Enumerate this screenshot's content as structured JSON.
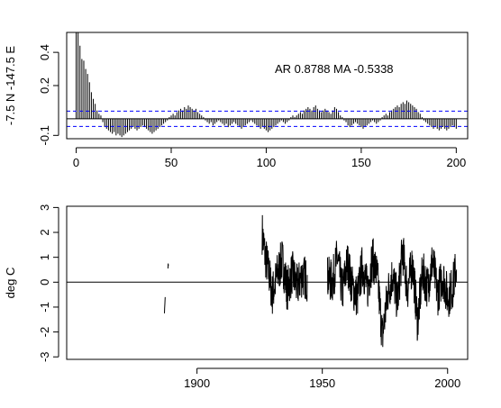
{
  "chart_data": [
    {
      "type": "bar",
      "subtype": "acf-spike",
      "title": "",
      "ylabel": "-7.5 N -147.5 E",
      "xlabel": "",
      "xlim": [
        -5,
        206
      ],
      "ylim": [
        -0.12,
        0.52
      ],
      "xticks": [
        0,
        50,
        100,
        150,
        200
      ],
      "yticks": [
        -0.1,
        0.2,
        0.4
      ],
      "annotation": "AR 0.8788  MA -0.5338",
      "confidence_band": 0.046,
      "zero_line": true,
      "colors": {
        "spikes": "#000000",
        "confidence": "#0000ff",
        "frame": "#000000"
      },
      "lags": [
        0,
        1,
        2,
        3,
        4,
        5,
        6,
        7,
        8,
        9,
        10,
        11,
        12,
        13,
        14,
        15,
        16,
        17,
        18,
        19,
        20,
        21,
        22,
        23,
        24,
        25,
        26,
        27,
        28,
        29,
        30,
        31,
        32,
        33,
        34,
        35,
        36,
        37,
        38,
        39,
        40,
        41,
        42,
        43,
        44,
        45,
        46,
        47,
        48,
        49,
        50,
        51,
        52,
        53,
        54,
        55,
        56,
        57,
        58,
        59,
        60,
        61,
        62,
        63,
        64,
        65,
        66,
        67,
        68,
        69,
        70,
        71,
        72,
        73,
        74,
        75,
        76,
        77,
        78,
        79,
        80,
        81,
        82,
        83,
        84,
        85,
        86,
        87,
        88,
        89,
        90,
        91,
        92,
        93,
        94,
        95,
        96,
        97,
        98,
        99,
        100,
        101,
        102,
        103,
        104,
        105,
        106,
        107,
        108,
        109,
        110,
        111,
        112,
        113,
        114,
        115,
        116,
        117,
        118,
        119,
        120,
        121,
        122,
        123,
        124,
        125,
        126,
        127,
        128,
        129,
        130,
        131,
        132,
        133,
        134,
        135,
        136,
        137,
        138,
        139,
        140,
        141,
        142,
        143,
        144,
        145,
        146,
        147,
        148,
        149,
        150,
        151,
        152,
        153,
        154,
        155,
        156,
        157,
        158,
        159,
        160,
        161,
        162,
        163,
        164,
        165,
        166,
        167,
        168,
        169,
        170,
        171,
        172,
        173,
        174,
        175,
        176,
        177,
        178,
        179,
        180,
        181,
        182,
        183,
        184,
        185,
        186,
        187,
        188,
        189,
        190,
        191,
        192,
        193,
        194,
        195,
        196,
        197,
        198,
        199,
        200
      ],
      "acf": [
        0.55,
        0.55,
        0.44,
        0.36,
        0.35,
        0.3,
        0.27,
        0.22,
        0.16,
        0.12,
        0.09,
        0.05,
        0.03,
        0.02,
        -0.02,
        -0.05,
        -0.06,
        -0.07,
        -0.08,
        -0.09,
        -0.08,
        -0.1,
        -0.09,
        -0.1,
        -0.11,
        -0.1,
        -0.09,
        -0.08,
        -0.07,
        -0.06,
        -0.05,
        -0.06,
        -0.07,
        -0.06,
        -0.05,
        -0.04,
        -0.05,
        -0.06,
        -0.07,
        -0.08,
        -0.09,
        -0.08,
        -0.07,
        -0.06,
        -0.05,
        -0.04,
        -0.03,
        -0.02,
        -0.01,
        0.01,
        0.02,
        0.03,
        0.02,
        0.04,
        0.05,
        0.06,
        0.05,
        0.07,
        0.06,
        0.08,
        0.07,
        0.06,
        0.05,
        0.06,
        0.04,
        0.03,
        0.02,
        0.01,
        -0.01,
        -0.02,
        -0.03,
        -0.02,
        -0.04,
        -0.03,
        -0.02,
        -0.01,
        -0.02,
        -0.03,
        -0.04,
        -0.03,
        -0.05,
        -0.04,
        -0.03,
        -0.02,
        -0.03,
        -0.04,
        -0.05,
        -0.06,
        -0.05,
        -0.04,
        -0.03,
        -0.02,
        -0.01,
        -0.02,
        -0.03,
        -0.04,
        -0.05,
        -0.06,
        -0.05,
        -0.06,
        -0.07,
        -0.08,
        -0.07,
        -0.06,
        -0.05,
        -0.04,
        -0.03,
        -0.02,
        -0.01,
        -0.02,
        -0.03,
        -0.02,
        -0.01,
        0.01,
        0.02,
        0.01,
        0.02,
        0.03,
        0.04,
        0.03,
        0.05,
        0.06,
        0.07,
        0.06,
        0.05,
        0.07,
        0.08,
        0.06,
        0.05,
        0.04,
        0.05,
        0.06,
        0.05,
        0.04,
        0.03,
        0.05,
        0.07,
        0.06,
        0.04,
        0.02,
        0.01,
        -0.01,
        -0.02,
        -0.04,
        -0.05,
        -0.04,
        -0.03,
        -0.02,
        -0.03,
        -0.04,
        -0.05,
        -0.06,
        -0.05,
        -0.04,
        -0.03,
        -0.02,
        -0.01,
        -0.02,
        -0.03,
        -0.02,
        -0.01,
        0.01,
        0.02,
        0.03,
        0.02,
        0.04,
        0.05,
        0.06,
        0.07,
        0.08,
        0.07,
        0.09,
        0.1,
        0.09,
        0.11,
        0.1,
        0.09,
        0.08,
        0.07,
        0.06,
        0.04,
        0.03,
        0.01,
        -0.01,
        -0.02,
        -0.03,
        -0.04,
        -0.05,
        -0.06,
        -0.05,
        -0.06,
        -0.07,
        -0.06,
        -0.05,
        -0.06,
        -0.07,
        -0.06,
        -0.05,
        -0.04,
        -0.05,
        -0.06,
        -0.05,
        -0.04
      ]
    },
    {
      "type": "line",
      "title": "",
      "ylabel": "deg C",
      "xlabel": "",
      "xlim": [
        1848,
        2008
      ],
      "ylim": [
        -3.1,
        3.05
      ],
      "xticks": [
        1900,
        1950,
        2000
      ],
      "yticks": [
        -3,
        -2,
        -1,
        0,
        1,
        2,
        3
      ],
      "zero_line": true,
      "colors": {
        "line": "#000000",
        "frame": "#000000"
      },
      "noise_seed": 7,
      "segments": [
        {
          "x": [
            1887.0,
            1887.1,
            1887.2,
            1887.3
          ],
          "y": [
            -1.25,
            -1.05,
            -0.85,
            -0.6
          ]
        },
        {
          "x": [
            1888.4,
            1888.5,
            1888.6
          ],
          "y": [
            0.55,
            0.75,
            0.65
          ]
        }
      ],
      "dense_start": 1926.0,
      "dense_end": 2003.6,
      "dense_step": 0.0833,
      "anchors": {
        "x": [
          1926,
          1927,
          1929,
          1930,
          1932,
          1934,
          1936,
          1938,
          1940,
          1942,
          1944,
          1946,
          1948,
          1950,
          1952,
          1954,
          1956,
          1958,
          1960,
          1962,
          1964,
          1966,
          1968,
          1970,
          1972,
          1974,
          1976,
          1978,
          1980,
          1982,
          1984,
          1986,
          1988,
          1990,
          1992,
          1994,
          1996,
          1998,
          2000,
          2002,
          2003.6
        ],
        "y": [
          2.0,
          1.2,
          0.2,
          -0.5,
          0.3,
          0.9,
          -0.3,
          0.4,
          -0.2,
          0.3,
          0.1,
          null,
          null,
          null,
          0.2,
          0.0,
          1.0,
          -0.4,
          0.8,
          -0.2,
          -0.6,
          0.7,
          -0.3,
          1.0,
          0.2,
          -2.2,
          -0.5,
          0.3,
          -0.8,
          1.3,
          -0.3,
          0.8,
          -1.6,
          0.4,
          -0.2,
          0.9,
          -0.5,
          0.3,
          -0.6,
          -0.2,
          0.7
        ]
      },
      "amplitude": 0.9
    }
  ]
}
